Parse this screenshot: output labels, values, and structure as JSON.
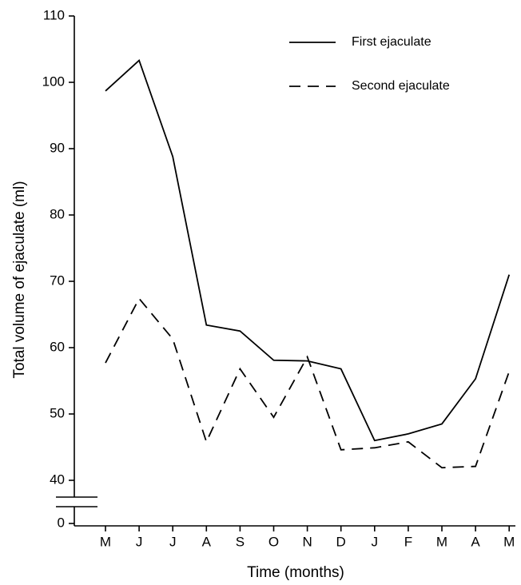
{
  "chart_data": {
    "type": "line",
    "xlabel": "Time (months)",
    "ylabel": "Total volume of ejaculate (ml)",
    "categories": [
      "M",
      "J",
      "J",
      "A",
      "S",
      "O",
      "N",
      "D",
      "J",
      "F",
      "M",
      "A",
      "M"
    ],
    "series": [
      {
        "name": "First ejaculate",
        "color": "#000000",
        "dash": "solid",
        "values": [
          98.7,
          103.3,
          88.8,
          63.4,
          62.5,
          58.1,
          58.0,
          56.8,
          46.0,
          47.0,
          48.5,
          55.3,
          71.0
        ]
      },
      {
        "name": "Second ejaculate",
        "color": "#000000",
        "dash": "dashed",
        "values": [
          57.7,
          67.4,
          61.3,
          45.8,
          56.8,
          49.5,
          58.6,
          44.6,
          44.9,
          45.8,
          41.9,
          42.1,
          56.4
        ]
      }
    ],
    "ylim": [
      40,
      110
    ],
    "axis_break": [
      0,
      40
    ],
    "yticks": [
      0,
      40,
      50,
      60,
      70,
      80,
      90,
      100,
      110
    ],
    "legend": "upper right"
  }
}
